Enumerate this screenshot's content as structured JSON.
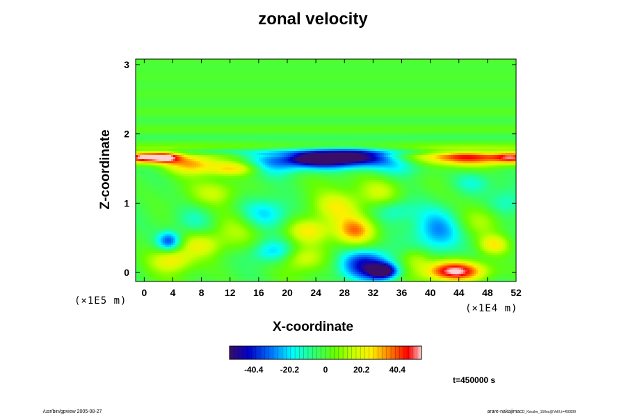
{
  "chart_data": {
    "type": "heatmap",
    "title": "zonal velocity",
    "xlabel": "X-coordinate",
    "ylabel": "Z-coordinate",
    "x_ticks": [
      0,
      4,
      8,
      12,
      16,
      20,
      24,
      28,
      32,
      36,
      40,
      44,
      48,
      52
    ],
    "y_ticks": [
      0,
      1,
      2,
      3
    ],
    "xlim": [
      -1.2,
      52
    ],
    "ylim": [
      -0.13,
      3.08
    ],
    "x_scale_label": "(×1E4 m)",
    "y_scale_label": "(×1E5 m)",
    "colorbar": {
      "ticks": [
        "-40.4",
        "-20.2",
        "0",
        "20.2",
        "40.4"
      ],
      "range": [
        -54,
        54
      ]
    },
    "features": [
      {
        "x": -0.5,
        "z": 1.66,
        "sx": 1.6,
        "sz": 0.06,
        "value": 55
      },
      {
        "x": 2.8,
        "z": 1.66,
        "sx": 1.6,
        "sz": 0.06,
        "value": 52
      },
      {
        "x": 6.5,
        "z": 1.57,
        "sx": 2.5,
        "sz": 0.1,
        "value": 30
      },
      {
        "x": 12.5,
        "z": 1.5,
        "sx": 2.5,
        "sz": 0.07,
        "value": 26
      },
      {
        "x": 26.5,
        "z": 1.63,
        "sx": 5.5,
        "sz": 0.1,
        "value": -48
      },
      {
        "x": 24.0,
        "z": 1.64,
        "sx": 2.4,
        "sz": 0.06,
        "value": -30
      },
      {
        "x": 29.5,
        "z": 1.67,
        "sx": 2.8,
        "sz": 0.07,
        "value": -25
      },
      {
        "x": 45.0,
        "z": 1.66,
        "sx": 6.0,
        "sz": 0.08,
        "value": 42
      },
      {
        "x": 51.5,
        "z": 1.66,
        "sx": 1.8,
        "sz": 0.06,
        "value": 30
      },
      {
        "x": 18.0,
        "z": 1.55,
        "sx": 3.0,
        "sz": 0.12,
        "value": -14
      },
      {
        "x": 36.0,
        "z": 1.55,
        "sx": 2.5,
        "sz": 0.12,
        "value": -12
      },
      {
        "x": 3.5,
        "z": 0.45,
        "sx": 1.2,
        "sz": 0.1,
        "value": -36
      },
      {
        "x": 3.8,
        "z": 0.18,
        "sx": 2.0,
        "sz": 0.12,
        "value": 24
      },
      {
        "x": 7.0,
        "z": 0.75,
        "sx": 2.2,
        "sz": 0.15,
        "value": -14
      },
      {
        "x": 8.0,
        "z": 0.4,
        "sx": 2.0,
        "sz": 0.12,
        "value": 18
      },
      {
        "x": 13.0,
        "z": 0.6,
        "sx": 2.5,
        "sz": 0.2,
        "value": 14
      },
      {
        "x": 17.0,
        "z": 0.85,
        "sx": 2.5,
        "sz": 0.15,
        "value": -20
      },
      {
        "x": 18.0,
        "z": 0.3,
        "sx": 2.2,
        "sz": 0.12,
        "value": -22
      },
      {
        "x": 22.0,
        "z": 0.2,
        "sx": 2.0,
        "sz": 0.12,
        "value": 18
      },
      {
        "x": 23.0,
        "z": 0.6,
        "sx": 2.0,
        "sz": 0.12,
        "value": 22
      },
      {
        "x": 29.5,
        "z": 0.6,
        "sx": 2.0,
        "sz": 0.15,
        "value": 36
      },
      {
        "x": 27.0,
        "z": 0.95,
        "sx": 2.2,
        "sz": 0.15,
        "value": 20
      },
      {
        "x": 33.0,
        "z": 1.15,
        "sx": 2.2,
        "sz": 0.15,
        "value": 18
      },
      {
        "x": 31.0,
        "z": 0.1,
        "sx": 2.6,
        "sz": 0.16,
        "value": -42
      },
      {
        "x": 33.5,
        "z": 0.02,
        "sx": 1.3,
        "sz": 0.07,
        "value": -52
      },
      {
        "x": 35.0,
        "z": 0.9,
        "sx": 2.0,
        "sz": 0.12,
        "value": -14
      },
      {
        "x": 41.0,
        "z": 0.6,
        "sx": 2.5,
        "sz": 0.25,
        "value": -30
      },
      {
        "x": 43.5,
        "z": 0.02,
        "sx": 3.0,
        "sz": 0.1,
        "value": 54
      },
      {
        "x": 49.0,
        "z": 0.4,
        "sx": 1.5,
        "sz": 0.1,
        "value": 26
      },
      {
        "x": 47.5,
        "z": 0.75,
        "sx": 2.2,
        "sz": 0.15,
        "value": 14
      },
      {
        "x": 50.5,
        "z": 1.0,
        "sx": 1.8,
        "sz": 0.15,
        "value": -14
      },
      {
        "x": 46.0,
        "z": 1.3,
        "sx": 2.0,
        "sz": 0.12,
        "value": -16
      },
      {
        "x": 10.0,
        "z": 1.15,
        "sx": 2.2,
        "sz": 0.12,
        "value": 14
      },
      {
        "x": 38.0,
        "z": 0.2,
        "sx": 1.5,
        "sz": 0.1,
        "value": 16
      }
    ]
  },
  "annotation": {
    "time": "t=450000 s"
  },
  "footer": {
    "left": "/usr/bin/gpview 2005-08-27",
    "right": "arare-nakajima",
    "right_sub": "CD_Kessler_150nc@VelX,t=450000"
  }
}
